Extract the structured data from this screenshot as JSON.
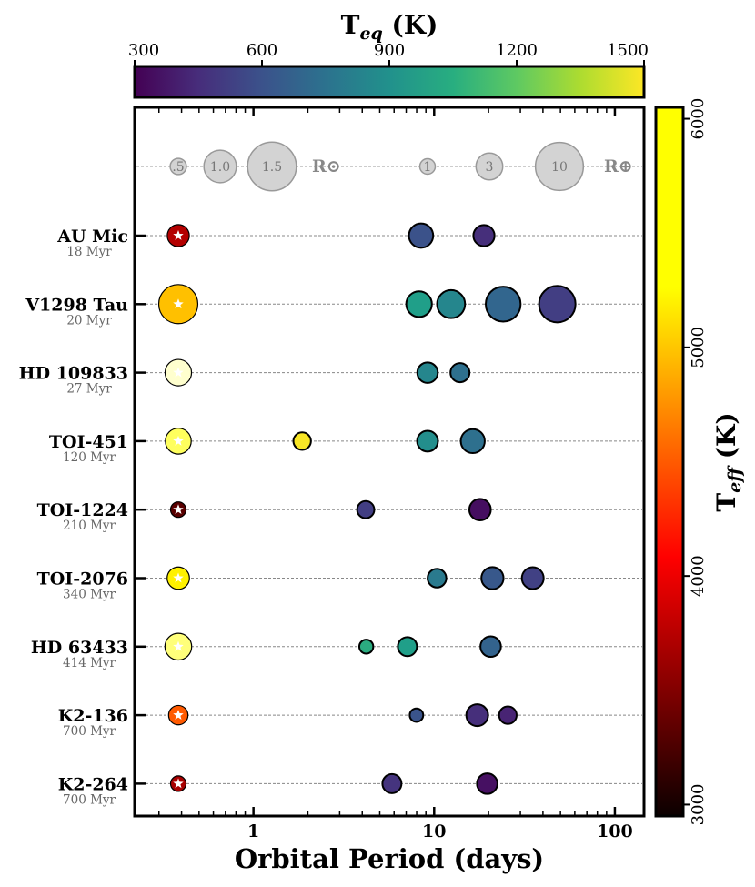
{
  "chart_data": {
    "type": "scatter",
    "title": "",
    "xlabel": "Orbital Period (days)",
    "xscale": "log",
    "xlim": [
      0.22,
      145
    ],
    "xticks": [
      {
        "value": 1,
        "label": "1"
      },
      {
        "value": 10,
        "label": "10"
      },
      {
        "value": 100,
        "label": "100"
      }
    ],
    "gridlines": "horizontal dashed per system",
    "teq_colorbar": {
      "title_main": "T",
      "title_sub": "eq",
      "title_unit": " (K)",
      "range": [
        300,
        1500
      ],
      "ticks": [
        {
          "value": 300,
          "label": "300"
        },
        {
          "value": 600,
          "label": "600"
        },
        {
          "value": 900,
          "label": "900"
        },
        {
          "value": 1200,
          "label": "1200"
        },
        {
          "value": 1500,
          "label": "1500"
        }
      ],
      "colormap": "viridis",
      "placement": "top"
    },
    "teff_colorbar": {
      "title_main": "T",
      "title_sub": "eff",
      "title_unit": " (K)",
      "range": [
        2950,
        6050
      ],
      "ticks": [
        {
          "value": 3000,
          "label": "3000"
        },
        {
          "value": 4000,
          "label": "4000"
        },
        {
          "value": 5000,
          "label": "5000"
        },
        {
          "value": 6000,
          "label": "6000"
        }
      ],
      "colormap": "hot",
      "placement": "right"
    },
    "size_legend": {
      "stars": [
        {
          "label": ".5",
          "value": 0.5
        },
        {
          "label": "1.0",
          "value": 1.0
        },
        {
          "label": "1.5",
          "value": 1.5
        }
      ],
      "star_unit": "R⊙",
      "planets": [
        {
          "label": "1",
          "value": 1
        },
        {
          "label": "3",
          "value": 3
        },
        {
          "label": "10",
          "value": 10
        }
      ],
      "planet_unit": "R⊕"
    },
    "systems": [
      {
        "name": "AU Mic",
        "age": "18 Myr",
        "teff": 3700,
        "star_radius": 0.75,
        "planets": [
          {
            "period": 8.46,
            "radius": 4.2,
            "teq": 600
          },
          {
            "period": 18.86,
            "radius": 3.2,
            "teq": 460
          }
        ]
      },
      {
        "name": "V1298 Tau",
        "age": "20 Myr",
        "teff": 4970,
        "star_radius": 1.33,
        "planets": [
          {
            "period": 8.25,
            "radius": 4.7,
            "teq": 970
          },
          {
            "period": 12.4,
            "radius": 5.6,
            "teq": 850
          },
          {
            "period": 24.1,
            "radius": 8.7,
            "teq": 690
          },
          {
            "period": 48.0,
            "radius": 9.5,
            "teq": 520
          }
        ]
      },
      {
        "name": "HD 109833",
        "age": "27 Myr",
        "teff": 5900,
        "star_radius": 0.9,
        "planets": [
          {
            "period": 9.19,
            "radius": 3.0,
            "teq": 850
          },
          {
            "period": 13.9,
            "radius": 2.6,
            "teq": 740
          }
        ]
      },
      {
        "name": "TOI-451",
        "age": "120 Myr",
        "teff": 5550,
        "star_radius": 0.88,
        "planets": [
          {
            "period": 1.86,
            "radius": 2.2,
            "teq": 1490
          },
          {
            "period": 9.19,
            "radius": 3.1,
            "teq": 890
          },
          {
            "period": 16.36,
            "radius": 4.1,
            "teq": 740
          }
        ]
      },
      {
        "name": "TOI-1224",
        "age": "210 Myr",
        "teff": 3300,
        "star_radius": 0.4,
        "planets": [
          {
            "period": 4.18,
            "radius": 2.1,
            "teq": 520
          },
          {
            "period": 17.95,
            "radius": 3.3,
            "teq": 345
          }
        ]
      },
      {
        "name": "TOI-2076",
        "age": "340 Myr",
        "teff": 5200,
        "star_radius": 0.76,
        "planets": [
          {
            "period": 10.36,
            "radius": 2.5,
            "teq": 790
          },
          {
            "period": 21.02,
            "radius": 3.5,
            "teq": 630
          },
          {
            "period": 35.13,
            "radius": 3.4,
            "teq": 530
          }
        ]
      },
      {
        "name": "HD 63433",
        "age": "414 Myr",
        "teff": 5640,
        "star_radius": 0.91,
        "planets": [
          {
            "period": 4.21,
            "radius": 1.4,
            "teq": 1040
          },
          {
            "period": 7.11,
            "radius": 2.6,
            "teq": 970
          },
          {
            "period": 20.55,
            "radius": 3.0,
            "teq": 680
          }
        ]
      },
      {
        "name": "K2-136",
        "age": "700 Myr",
        "teff": 4500,
        "star_radius": 0.66,
        "planets": [
          {
            "period": 7.98,
            "radius": 1.3,
            "teq": 610
          },
          {
            "period": 17.31,
            "radius": 3.4,
            "teq": 460
          },
          {
            "period": 25.58,
            "radius": 2.2,
            "teq": 420
          }
        ]
      },
      {
        "name": "K2-264",
        "age": "700 Myr",
        "teff": 3650,
        "star_radius": 0.47,
        "planets": [
          {
            "period": 5.84,
            "radius": 2.6,
            "teq": 480
          },
          {
            "period": 19.66,
            "radius": 3.0,
            "teq": 350
          }
        ]
      }
    ]
  }
}
